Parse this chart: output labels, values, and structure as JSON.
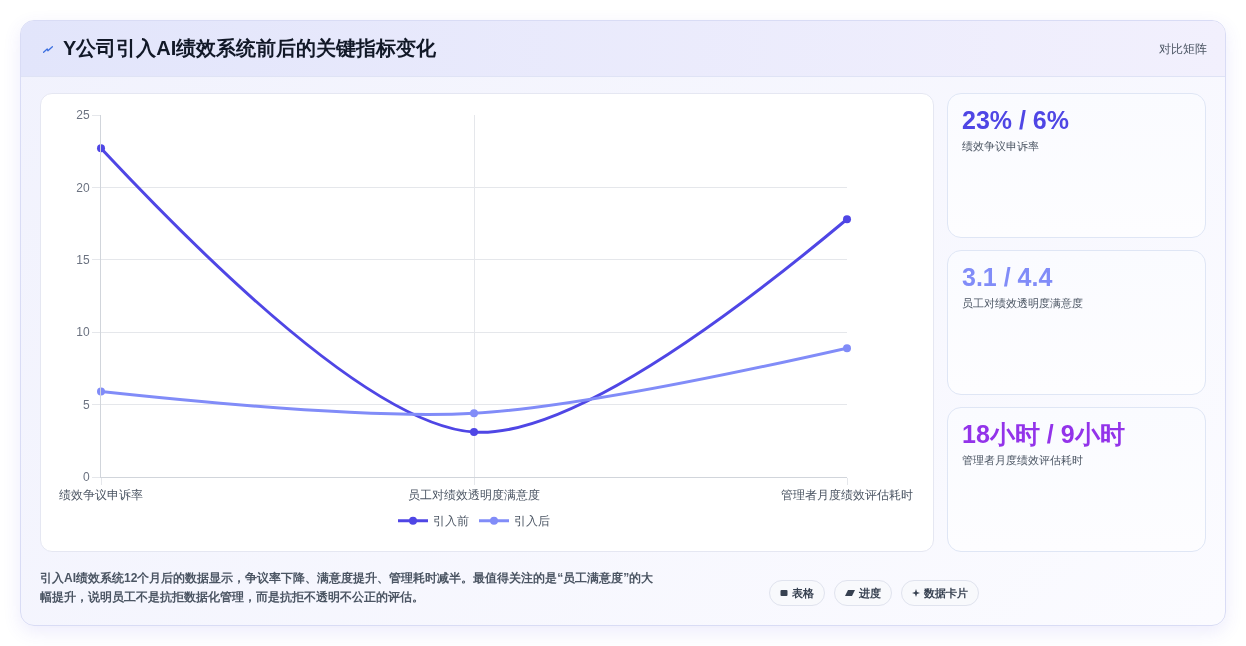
{
  "chart_data": {
    "type": "line",
    "title": "Y公司引入AI绩效系统前后的关键指标变化",
    "subtitle": "对比矩阵",
    "categories": [
      "绩效争议申诉率",
      "员工对绩效透明度满意度",
      "管理者月度绩效评估耗时"
    ],
    "series": [
      {
        "name": "引入前",
        "color": "#4f46e5",
        "values": [
          22.7,
          3.1,
          17.8
        ]
      },
      {
        "name": "引入后",
        "color": "#818cf8",
        "values": [
          5.9,
          4.4,
          8.9
        ]
      }
    ],
    "ylim": [
      0,
      25
    ],
    "yticks": [
      0,
      5,
      10,
      15,
      20,
      25
    ],
    "grid": true,
    "legend": "bottom",
    "marker": "circle",
    "line_style": "solid",
    "annotations": [
      "23% / 6%",
      "绩效争议申诉率",
      "3.1 / 4.4",
      "员工对绩效透明度满意度",
      "18小时 / 9小时",
      "管理者月度绩效评估耗时",
      "引入AI绩效系统12个月后的数据显示，争议率下降、满意度提升、管理耗时减半。最值得关注的是“员工满意度”的大幅提升，说明员工不是抗拒数据化管理，而是抗拒不透明不公正的评估。",
      "表格",
      "进度",
      "数据卡片"
    ]
  }
}
